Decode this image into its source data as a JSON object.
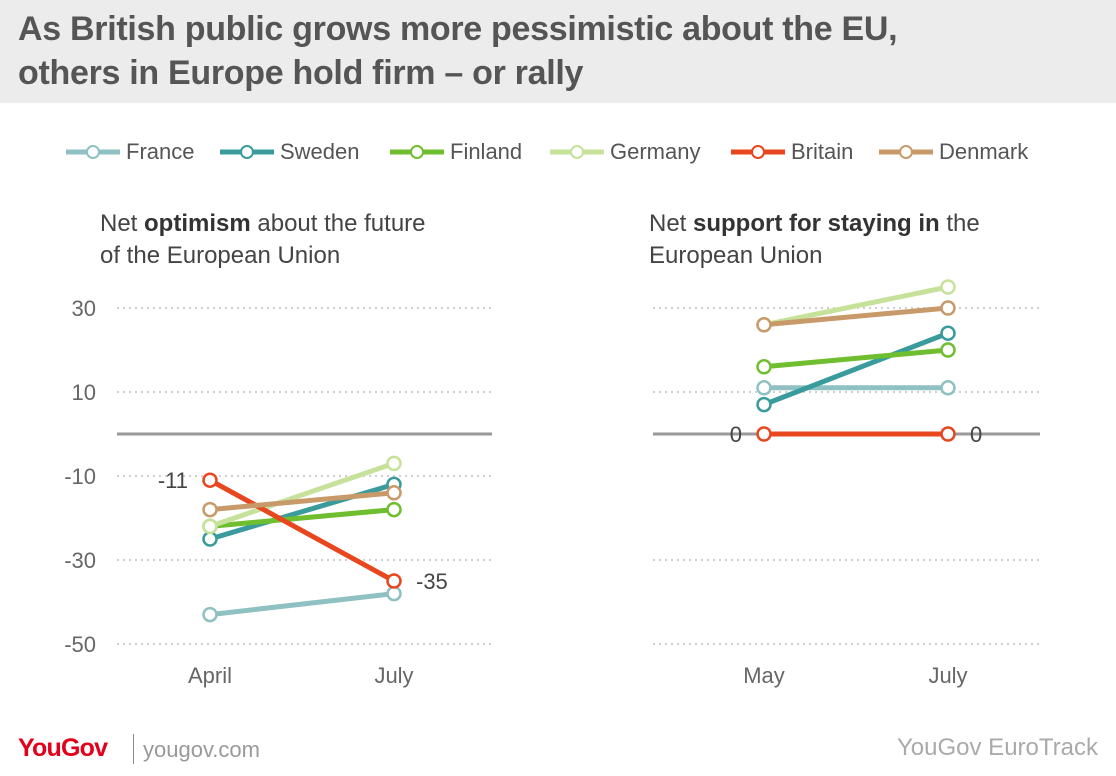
{
  "header": {
    "title_line1": "As British public grows more pessimistic about the EU,",
    "title_line2": "others in Europe hold firm – or rally"
  },
  "legend": [
    {
      "name": "France",
      "color": "#8fc1c3"
    },
    {
      "name": "Sweden",
      "color": "#3a9b9d"
    },
    {
      "name": "Finland",
      "color": "#6fbe2f"
    },
    {
      "name": "Germany",
      "color": "#c6e29a"
    },
    {
      "name": "Britain",
      "color": "#e8461e"
    },
    {
      "name": "Denmark",
      "color": "#c89a6a"
    }
  ],
  "panels": {
    "left": {
      "title_pre": "Net ",
      "title_bold": "optimism",
      "title_post": " about the future",
      "title_line2": "of the European Union"
    },
    "right": {
      "title_pre": "Net ",
      "title_bold": "support for staying in",
      "title_post": " the",
      "title_line2": "European Union"
    }
  },
  "chart_data": [
    {
      "type": "line",
      "title": "Net optimism about the future of the European Union",
      "categories": [
        "April",
        "July"
      ],
      "yticks": [
        30,
        10,
        -10,
        -30,
        -50
      ],
      "ylim": [
        -50,
        30
      ],
      "grid": true,
      "series": [
        {
          "name": "France",
          "values": [
            -43,
            -38
          ]
        },
        {
          "name": "Sweden",
          "values": [
            -25,
            -12
          ]
        },
        {
          "name": "Finland",
          "values": [
            -22,
            -18
          ]
        },
        {
          "name": "Germany",
          "values": [
            -22,
            -7
          ]
        },
        {
          "name": "Britain",
          "values": [
            -11,
            -35
          ]
        },
        {
          "name": "Denmark",
          "values": [
            -18,
            -14
          ]
        }
      ],
      "annotations": [
        {
          "series": "Britain",
          "point": 0,
          "text": "-11",
          "side": "left"
        },
        {
          "series": "Britain",
          "point": 1,
          "text": "-35",
          "side": "right"
        }
      ]
    },
    {
      "type": "line",
      "title": "Net support for staying in the European Union",
      "categories": [
        "May",
        "July"
      ],
      "yticks": [],
      "ylim": [
        -50,
        30
      ],
      "grid": true,
      "series": [
        {
          "name": "France",
          "values": [
            11,
            11
          ]
        },
        {
          "name": "Sweden",
          "values": [
            7,
            24
          ]
        },
        {
          "name": "Finland",
          "values": [
            16,
            20
          ]
        },
        {
          "name": "Germany",
          "values": [
            26,
            35
          ]
        },
        {
          "name": "Britain",
          "values": [
            0,
            0
          ]
        },
        {
          "name": "Denmark",
          "values": [
            26,
            30
          ]
        }
      ],
      "annotations": [
        {
          "series": "Britain",
          "point": 0,
          "text": "0",
          "side": "left"
        },
        {
          "series": "Britain",
          "point": 1,
          "text": "0",
          "side": "right"
        }
      ]
    }
  ],
  "footer": {
    "logo": "YouGov",
    "url": "yougov.com",
    "source": "YouGov EuroTrack"
  }
}
